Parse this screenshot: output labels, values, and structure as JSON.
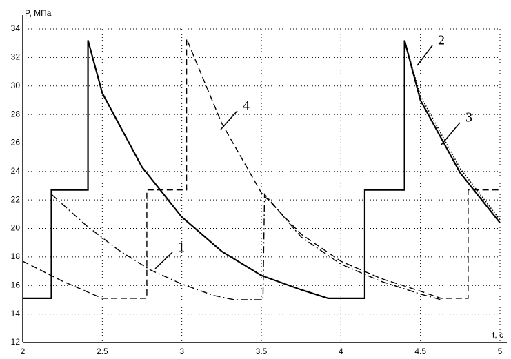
{
  "chart_data": {
    "type": "line",
    "y_label": "P, МПа",
    "x_label": "t, c",
    "xlim": [
      2,
      5
    ],
    "ylim": [
      12,
      34
    ],
    "xticks": [
      2,
      2.5,
      3,
      3.5,
      4,
      4.5,
      5
    ],
    "yticks": [
      12,
      14,
      16,
      18,
      20,
      22,
      24,
      26,
      28,
      30,
      32,
      34
    ],
    "grid": true,
    "series": [
      {
        "name": "1",
        "color": "#000000",
        "style": "dash-dot",
        "x": [
          2.18,
          2.4,
          2.6,
          2.8,
          3.0,
          3.2,
          3.33,
          3.51,
          3.52,
          3.75,
          4.0,
          4.25,
          4.5,
          4.63
        ],
        "values": [
          22.4,
          20.2,
          18.5,
          17.1,
          16.1,
          15.3,
          15.0,
          15.0,
          22.4,
          19.4,
          17.5,
          16.3,
          15.4,
          15.0
        ]
      },
      {
        "name": "2",
        "color": "#000000",
        "style": "dotted",
        "x": [
          4.4,
          4.5,
          4.75,
          5
        ],
        "values": [
          33.2,
          29.3,
          24.2,
          20.6
        ]
      },
      {
        "name": "3",
        "color": "#000000",
        "style": "solid",
        "x": [
          2,
          2.18,
          2.18,
          2.41,
          2.41,
          2.5,
          2.75,
          3,
          3.25,
          3.5,
          3.75,
          3.92,
          4.15,
          4.15,
          4.4,
          4.4,
          4.5,
          4.75,
          5
        ],
        "values": [
          15.1,
          15.1,
          22.7,
          22.7,
          33.2,
          29.5,
          24.3,
          20.8,
          18.4,
          16.7,
          15.7,
          15.1,
          15.1,
          22.7,
          22.7,
          33.2,
          29.0,
          23.9,
          20.4
        ]
      },
      {
        "name": "4",
        "color": "#000000",
        "style": "dashed",
        "x": [
          2,
          2.25,
          2.5,
          2.78,
          2.78,
          3.03,
          3.03,
          3.25,
          3.5,
          3.75,
          4,
          4.25,
          4.5,
          4.63,
          4.8,
          4.8,
          5
        ],
        "values": [
          17.7,
          16.3,
          15.1,
          15.1,
          22.7,
          22.7,
          33.3,
          27.4,
          22.5,
          19.6,
          17.7,
          16.5,
          15.6,
          15.1,
          15.1,
          22.7,
          22.7
        ]
      }
    ]
  }
}
